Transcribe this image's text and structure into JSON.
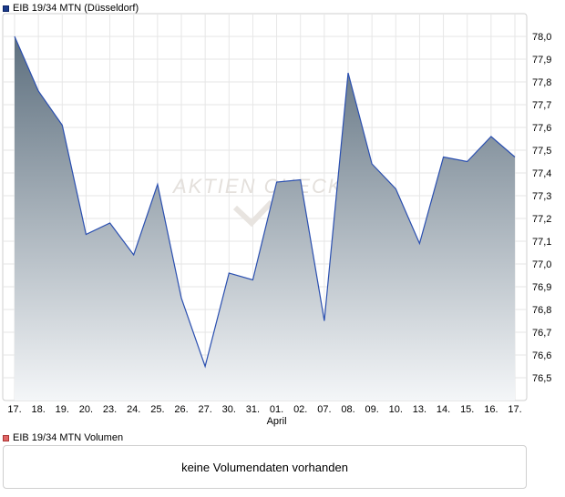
{
  "price_legend": {
    "label": "EIB 19/34 MTN (Düsseldorf)",
    "color": "#1a3a8a"
  },
  "volume_legend": {
    "label": "EIB 19/34 MTN Volumen",
    "color": "#e06666"
  },
  "volume_message": "keine Volumendaten vorhanden",
  "watermark": "AKTIEN CHECK",
  "chart_data": {
    "type": "area",
    "x": [
      "17.",
      "18.",
      "19.",
      "20.",
      "23.",
      "24.",
      "25.",
      "26.",
      "27.",
      "30.",
      "31.",
      "01.",
      "02.",
      "07.",
      "08.",
      "09.",
      "10.",
      "13.",
      "14.",
      "15.",
      "16.",
      "17."
    ],
    "x_sublabels": {
      "01.": "April"
    },
    "series": [
      {
        "values": [
          78.0,
          77.76,
          77.61,
          77.13,
          77.18,
          77.04,
          77.35,
          76.85,
          76.55,
          76.96,
          76.93,
          77.36,
          77.37,
          76.75,
          77.84,
          77.44,
          77.33,
          77.09,
          77.47,
          77.45,
          77.56,
          77.47
        ]
      }
    ],
    "ylim": [
      76.4,
      78.1
    ],
    "y_ticks": [
      "78,0",
      "77,9",
      "77,8",
      "77,7",
      "77,6",
      "77,5",
      "77,4",
      "77,3",
      "77,2",
      "77,1",
      "77,0",
      "76,9",
      "76,8",
      "76,7",
      "76,6",
      "76,5"
    ],
    "y_tick_values": [
      78.0,
      77.9,
      77.8,
      77.7,
      77.6,
      77.5,
      77.4,
      77.3,
      77.2,
      77.1,
      77.0,
      76.9,
      76.8,
      76.7,
      76.6,
      76.5
    ],
    "grid": true,
    "line_color": "#2a4fb0",
    "fill_top_color": "#5d6f7e",
    "fill_bottom_color": "#f4f6f8"
  }
}
